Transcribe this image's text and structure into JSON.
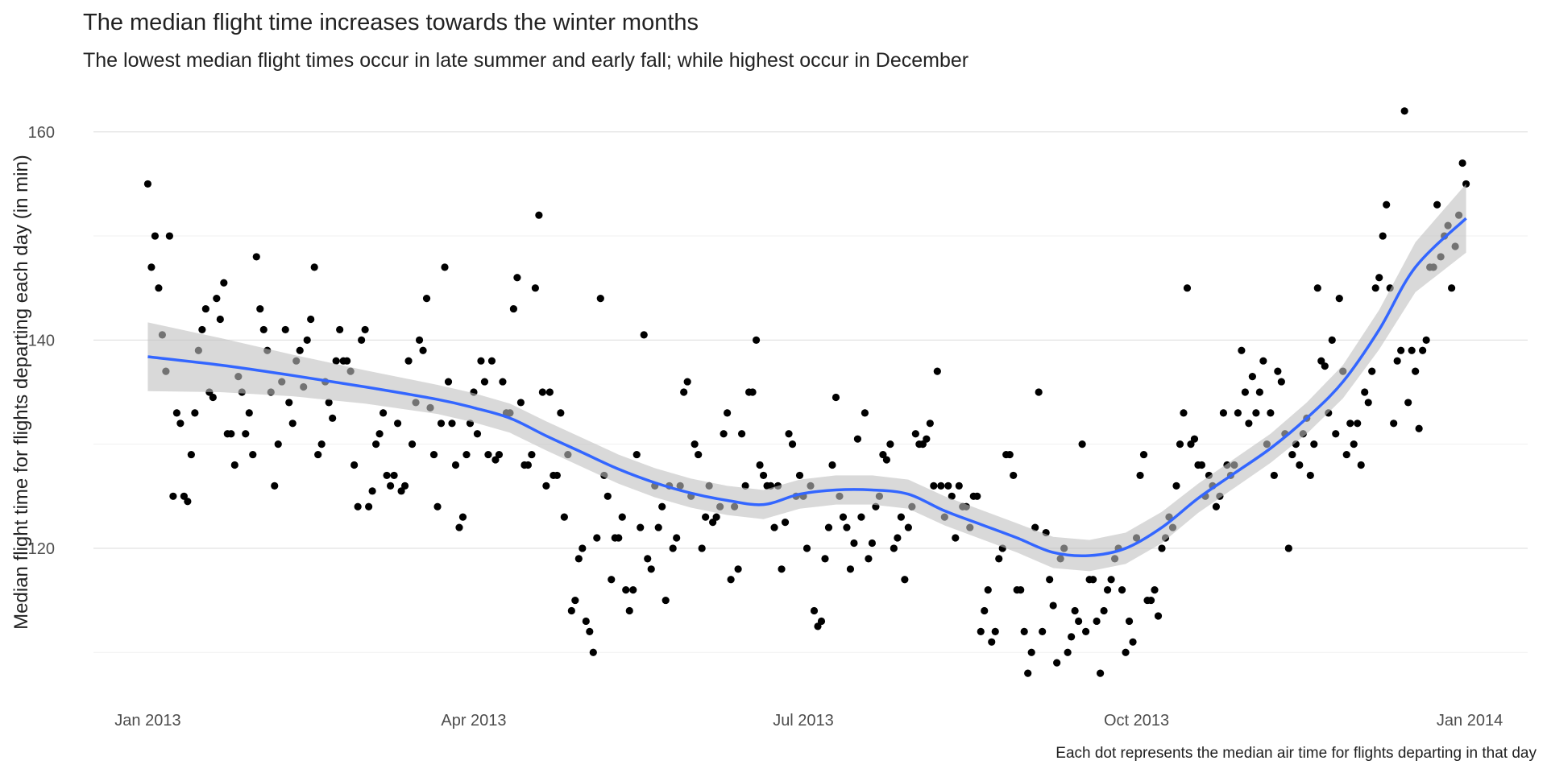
{
  "chart_data": {
    "type": "scatter",
    "title": "The median flight time increases towards the winter months",
    "subtitle": "The lowest median flight times occur in late summer and early fall; while highest occur in December",
    "y_label": "Median flight time for flights departing each day (in min)",
    "caption": "Each dot represents the median air time for flights departing in that day",
    "xlim": [
      -15,
      381
    ],
    "xticks": [
      {
        "value": 0,
        "label": "Jan 2013"
      },
      {
        "value": 90,
        "label": "Apr 2013"
      },
      {
        "value": 181,
        "label": "Jul 2013"
      },
      {
        "value": 273,
        "label": "Oct 2013"
      },
      {
        "value": 365,
        "label": "Jan 2014"
      }
    ],
    "ylim": [
      105.3,
      164.7
    ],
    "yticks": [
      120,
      140,
      160
    ],
    "y_minor_grid": [
      110,
      130,
      150
    ],
    "grid": true,
    "series": [
      {
        "color": "#000000",
        "x": [
          0,
          1,
          2,
          3,
          4,
          5,
          6,
          7,
          8,
          9,
          10,
          11,
          12,
          13,
          14,
          15,
          16,
          17,
          18,
          19,
          20,
          21,
          22,
          23,
          24,
          25,
          26,
          27,
          28,
          29,
          30,
          31,
          32,
          33,
          34,
          35,
          36,
          37,
          38,
          39,
          40,
          41,
          42,
          43,
          44,
          45,
          46,
          47,
          48,
          49,
          50,
          51,
          52,
          53,
          54,
          55,
          56,
          57,
          58,
          59,
          60,
          61,
          62,
          63,
          64,
          65,
          66,
          67,
          68,
          69,
          70,
          71,
          72,
          73,
          74,
          75,
          76,
          77,
          78,
          79,
          80,
          81,
          82,
          83,
          84,
          85,
          86,
          87,
          88,
          89,
          90,
          91,
          92,
          93,
          94,
          95,
          96,
          97,
          98,
          99,
          100,
          101,
          102,
          103,
          104,
          105,
          106,
          107,
          108,
          109,
          110,
          111,
          112,
          113,
          114,
          115,
          116,
          117,
          118,
          119,
          120,
          121,
          122,
          123,
          124,
          125,
          126,
          127,
          128,
          129,
          130,
          131,
          132,
          133,
          134,
          135,
          136,
          137,
          138,
          139,
          140,
          141,
          142,
          143,
          144,
          145,
          146,
          147,
          148,
          149,
          150,
          151,
          152,
          153,
          154,
          155,
          156,
          157,
          158,
          159,
          160,
          161,
          162,
          163,
          164,
          165,
          166,
          167,
          168,
          169,
          170,
          171,
          172,
          173,
          174,
          175,
          176,
          177,
          178,
          179,
          180,
          181,
          182,
          183,
          184,
          185,
          186,
          187,
          188,
          189,
          190,
          191,
          192,
          193,
          194,
          195,
          196,
          197,
          198,
          199,
          200,
          201,
          202,
          203,
          204,
          205,
          206,
          207,
          208,
          209,
          210,
          211,
          212,
          213,
          214,
          215,
          216,
          217,
          218,
          219,
          220,
          221,
          222,
          223,
          224,
          225,
          226,
          227,
          228,
          229,
          230,
          231,
          232,
          233,
          234,
          235,
          236,
          237,
          238,
          239,
          240,
          241,
          242,
          243,
          244,
          245,
          246,
          247,
          248,
          249,
          250,
          251,
          252,
          253,
          254,
          255,
          256,
          257,
          258,
          259,
          260,
          261,
          262,
          263,
          264,
          265,
          266,
          267,
          268,
          269,
          270,
          271,
          272,
          273,
          274,
          275,
          276,
          277,
          278,
          279,
          280,
          281,
          282,
          283,
          284,
          285,
          286,
          287,
          288,
          289,
          290,
          291,
          292,
          293,
          294,
          295,
          296,
          297,
          298,
          299,
          300,
          301,
          302,
          303,
          304,
          305,
          306,
          307,
          308,
          309,
          310,
          311,
          312,
          313,
          314,
          315,
          316,
          317,
          318,
          319,
          320,
          321,
          322,
          323,
          324,
          325,
          326,
          327,
          328,
          329,
          330,
          331,
          332,
          333,
          334,
          335,
          336,
          337,
          338,
          339,
          340,
          341,
          342,
          343,
          344,
          345,
          346,
          347,
          348,
          349,
          350,
          351,
          352,
          353,
          354,
          355,
          356,
          357,
          358,
          359,
          360,
          361,
          362,
          363,
          364
        ],
        "values": [
          155,
          147,
          150,
          145,
          140.5,
          137,
          150,
          125,
          133,
          132,
          125,
          124.5,
          129,
          133,
          139,
          141,
          143,
          135,
          134.5,
          144,
          142,
          145.5,
          131,
          131,
          128,
          136.5,
          135,
          131,
          133,
          129,
          148,
          143,
          141,
          139,
          135,
          126,
          130,
          136,
          141,
          134,
          132,
          138,
          139,
          135.5,
          140,
          142,
          147,
          129,
          130,
          136,
          134,
          132.5,
          138,
          141,
          138,
          138,
          137,
          128,
          124,
          140,
          141,
          124,
          125.5,
          130,
          131,
          133,
          127,
          126,
          127,
          132,
          125.5,
          126,
          138,
          130,
          134,
          140,
          139,
          144,
          133.5,
          129,
          124,
          132,
          147,
          136,
          132,
          128,
          122,
          123,
          129,
          132,
          135,
          131,
          138,
          136,
          129,
          138,
          128.5,
          129,
          136,
          133,
          133,
          143,
          146,
          134,
          128,
          128,
          129,
          145,
          152,
          135,
          126,
          135,
          127,
          127,
          133,
          123,
          129,
          114,
          115,
          119,
          120,
          113,
          112,
          110,
          121,
          144,
          127,
          125,
          117,
          121,
          121,
          123,
          116,
          114,
          116,
          129,
          122,
          140.5,
          119,
          118,
          126,
          122,
          124,
          115,
          126,
          120,
          121,
          126,
          135,
          136,
          125,
          130,
          129,
          120,
          123,
          126,
          122.5,
          123,
          124,
          131,
          133,
          117,
          124,
          118,
          131,
          126,
          135,
          135,
          140,
          128,
          127,
          126,
          126,
          122,
          126,
          118,
          122.5,
          131,
          130,
          125,
          127,
          125,
          120,
          126,
          114,
          112.5,
          113,
          119,
          122,
          128,
          134.5,
          125,
          123,
          122,
          118,
          120.5,
          130.5,
          123,
          133,
          119,
          120.5,
          124,
          125,
          129,
          128.5,
          130,
          120,
          121,
          123,
          117,
          122,
          124,
          131,
          130,
          130,
          130.5,
          132,
          126,
          137,
          126,
          123,
          126,
          125,
          121,
          126,
          124,
          124,
          122,
          125,
          125,
          112,
          114,
          116,
          111,
          112,
          119,
          120,
          129,
          129,
          127,
          116,
          116,
          112,
          108,
          110,
          122,
          135,
          112,
          121.5,
          117,
          114.5,
          109,
          119,
          120,
          110,
          111.5,
          114,
          113,
          130,
          112,
          117,
          117,
          113,
          108,
          114,
          116,
          117,
          119,
          120,
          116,
          110,
          113,
          111,
          121,
          127,
          129,
          115,
          115,
          116,
          113.5,
          120,
          121,
          123,
          122,
          126,
          130,
          133,
          145,
          130,
          130.5,
          128,
          128,
          125,
          127,
          126,
          124,
          125,
          133,
          128,
          127,
          128,
          133,
          139,
          135,
          132,
          136.5,
          133,
          135,
          138,
          130,
          133,
          127,
          137,
          136,
          131,
          120,
          129,
          130,
          128,
          131,
          132.5,
          127,
          130,
          145,
          138,
          137.5,
          133,
          140,
          131,
          144,
          137,
          129,
          132,
          130,
          132,
          128,
          135,
          134,
          137,
          145,
          146,
          150,
          153,
          145,
          132,
          138,
          139,
          162,
          134,
          139,
          137,
          131.5,
          139,
          140,
          147,
          147,
          153,
          148,
          150,
          151,
          145,
          149,
          152,
          157,
          155
        ]
      }
    ],
    "smooth": {
      "color": "#3366ff",
      "band_color": "#bfbfbf",
      "x": [
        0,
        20,
        40,
        60,
        80,
        90,
        100,
        110,
        120,
        130,
        140,
        150,
        160,
        170,
        180,
        190,
        200,
        210,
        220,
        230,
        240,
        250,
        260,
        270,
        280,
        290,
        300,
        310,
        320,
        330,
        340,
        350,
        364
      ],
      "values": [
        138.4,
        137.6,
        136.6,
        135.5,
        134.3,
        133.5,
        132.5,
        130.8,
        129.2,
        127.6,
        126.3,
        125.3,
        124.6,
        124.2,
        125.2,
        125.6,
        125.6,
        125.2,
        123.6,
        122.3,
        121,
        119.6,
        119.3,
        120,
        122,
        124.8,
        127.2,
        129.6,
        132.5,
        136,
        141,
        147,
        151.7
      ],
      "lower": [
        135.1,
        135,
        134.6,
        133.9,
        132.9,
        132.1,
        131.1,
        129.4,
        127.8,
        126.2,
        124.9,
        123.9,
        123.2,
        122.8,
        123.8,
        124.2,
        124.2,
        123.8,
        122.2,
        120.9,
        119.6,
        118.1,
        117.8,
        118.5,
        120.5,
        123.4,
        125.8,
        128.2,
        131,
        134.4,
        139.1,
        144.6,
        148.4
      ],
      "upper": [
        141.7,
        140.2,
        138.6,
        137.1,
        135.7,
        134.9,
        133.9,
        132.2,
        130.6,
        129,
        127.7,
        126.7,
        126,
        125.6,
        126.6,
        127,
        127,
        126.6,
        125,
        123.7,
        122.4,
        121.1,
        120.8,
        121.5,
        123.5,
        126.2,
        128.6,
        131,
        134,
        137.6,
        142.9,
        149.4,
        155
      ]
    }
  }
}
